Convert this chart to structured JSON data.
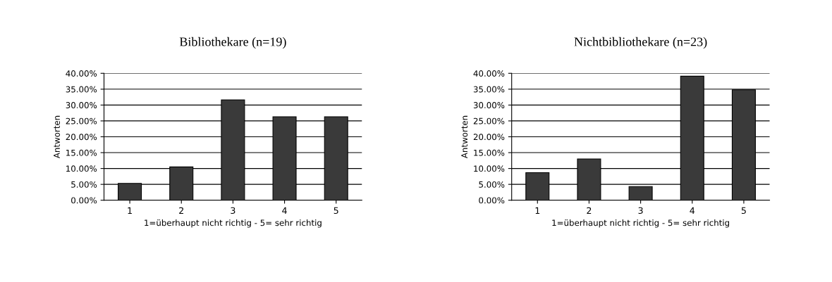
{
  "chart_data": [
    {
      "type": "bar",
      "title": "Bibliothekare (n=19)",
      "xlabel": "1=überhaupt nicht richtig - 5= sehr richtig",
      "ylabel": "Antworten",
      "categories": [
        "1",
        "2",
        "3",
        "4",
        "5"
      ],
      "values": [
        5.3,
        10.5,
        31.6,
        26.3,
        26.3
      ],
      "color": "#3a3a3a",
      "ylim": [
        0,
        40
      ],
      "yticks": [
        {
          "value": 0,
          "label": "0.00%"
        },
        {
          "value": 5,
          "label": "5.00%"
        },
        {
          "value": 10,
          "label": "10.00%"
        },
        {
          "value": 15,
          "label": "15.00%"
        },
        {
          "value": 20,
          "label": "20.00%"
        },
        {
          "value": 25,
          "label": "25.00%"
        },
        {
          "value": 30,
          "label": "30.00%"
        },
        {
          "value": 35,
          "label": "35.00%"
        },
        {
          "value": 40,
          "label": "40.00%"
        }
      ],
      "grid": "y"
    },
    {
      "type": "bar",
      "title": "Nichtbibliothekare (n=23)",
      "xlabel": "1=überhaupt nicht richtig - 5= sehr richtig",
      "ylabel": "Antworten",
      "categories": [
        "1",
        "2",
        "3",
        "4",
        "5"
      ],
      "values": [
        8.7,
        13,
        4.3,
        39.1,
        34.8
      ],
      "color": "#3a3a3a",
      "ylim": [
        0,
        40
      ],
      "yticks": [
        {
          "value": 0,
          "label": "0.00%"
        },
        {
          "value": 5,
          "label": "5.00%"
        },
        {
          "value": 10,
          "label": "10.00%"
        },
        {
          "value": 15,
          "label": "15.00%"
        },
        {
          "value": 20,
          "label": "20.00%"
        },
        {
          "value": 25,
          "label": "25.00%"
        },
        {
          "value": 30,
          "label": "30.00%"
        },
        {
          "value": 35,
          "label": "35.00%"
        },
        {
          "value": 40,
          "label": "40.00%"
        }
      ],
      "grid": "y"
    }
  ]
}
